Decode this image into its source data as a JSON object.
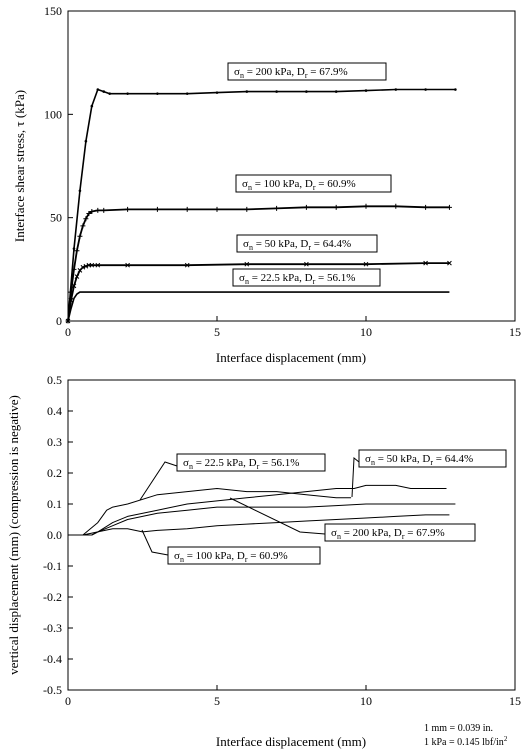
{
  "chart_data": [
    {
      "type": "line",
      "xlabel": "Interface displacement (mm)",
      "ylabel": "Interface shear stress, τ (kPa)",
      "xlim": [
        0,
        15
      ],
      "ylim": [
        0,
        150
      ],
      "xticks": [
        "0",
        "5",
        "10",
        "15"
      ],
      "yticks": [
        "0",
        "50",
        "100",
        "150"
      ],
      "grid": false,
      "series": [
        {
          "name": "σn = 200 kPa, Dr = 67.9%",
          "marker": "dot",
          "x": [
            0,
            0.2,
            0.4,
            0.6,
            0.8,
            1.0,
            1.2,
            1.4,
            2,
            3,
            4,
            5,
            6,
            7,
            8,
            9,
            10,
            11,
            12,
            13
          ],
          "y": [
            0,
            35,
            63,
            87,
            104,
            112,
            111,
            110,
            110,
            110,
            110,
            110.5,
            111,
            111,
            111,
            111,
            111.5,
            112,
            112,
            112
          ]
        },
        {
          "name": "σn = 100 kPa, Dr = 60.9%",
          "marker": "plus",
          "x": [
            0,
            0.1,
            0.2,
            0.3,
            0.4,
            0.5,
            0.6,
            0.7,
            0.8,
            1.0,
            1.2,
            2,
            3,
            4,
            5,
            6,
            7,
            8,
            9,
            10,
            11,
            12,
            12.8
          ],
          "y": [
            0,
            14,
            25,
            34,
            41,
            46,
            49.5,
            52,
            53,
            53.5,
            53.5,
            54,
            54,
            54,
            54,
            54,
            54.5,
            55,
            55,
            55.5,
            55.5,
            55,
            55
          ]
        },
        {
          "name": "σn = 50 kPa, Dr = 64.4%",
          "marker": "cross",
          "x": [
            0,
            0.1,
            0.2,
            0.3,
            0.4,
            0.5,
            0.6,
            0.7,
            0.8,
            1.0,
            2,
            4,
            6,
            8,
            10,
            12,
            12.8
          ],
          "y": [
            0,
            10,
            17,
            21.5,
            24.5,
            26,
            26.5,
            27,
            27,
            27,
            27,
            27,
            27.5,
            27.5,
            27.5,
            28,
            28
          ]
        },
        {
          "name": "σn = 22.5 kPa, Dr = 56.1%",
          "marker": "none",
          "x": [
            0,
            0.1,
            0.2,
            0.3,
            0.4,
            0.6,
            1,
            2,
            4,
            6,
            8,
            10,
            12,
            12.8
          ],
          "y": [
            0,
            6,
            11,
            13,
            14,
            14,
            14,
            14,
            14,
            14,
            14,
            14,
            14,
            14
          ]
        }
      ]
    },
    {
      "type": "line",
      "xlabel": "Interface displacement (mm)",
      "ylabel": "vertical displacement (mm) (compression is negative)",
      "xlim": [
        0,
        15
      ],
      "ylim": [
        -0.5,
        0.5
      ],
      "xticks": [
        "0",
        "5",
        "10",
        "15"
      ],
      "yticks": [
        "0.5",
        "0.4",
        "0.3",
        "0.2",
        "0.1",
        "0.0",
        "-0.1",
        "-0.2",
        "-0.3",
        "-0.4",
        "-0.5"
      ],
      "grid": false,
      "series": [
        {
          "name": "σn = 22.5 kPa, Dr = 56.1%",
          "x": [
            0,
            0.5,
            1,
            1.3,
            1.5,
            2,
            3,
            4,
            5,
            6,
            7,
            8,
            9,
            9.5
          ],
          "y": [
            0,
            0,
            0.04,
            0.08,
            0.09,
            0.1,
            0.13,
            0.14,
            0.15,
            0.14,
            0.14,
            0.13,
            0.12,
            0.12
          ]
        },
        {
          "name": "σn = 50 kPa, Dr = 64.4%",
          "x": [
            0,
            0.8,
            1,
            1.5,
            2,
            3,
            4,
            5,
            6,
            7,
            8,
            9,
            9.6,
            10,
            11,
            11.5,
            12,
            12.5,
            12.7
          ],
          "y": [
            0,
            0,
            0.01,
            0.04,
            0.06,
            0.08,
            0.1,
            0.11,
            0.12,
            0.13,
            0.14,
            0.15,
            0.15,
            0.16,
            0.16,
            0.15,
            0.15,
            0.15,
            0.15
          ]
        },
        {
          "name": "σn = 100 kPa, Dr = 60.9%",
          "x": [
            0,
            0.5,
            1,
            1.5,
            2,
            2.5,
            3,
            4,
            5,
            6,
            7,
            8,
            9,
            10,
            11,
            12,
            12.8
          ],
          "y": [
            0,
            0,
            0.01,
            0.02,
            0.02,
            0.01,
            0.015,
            0.02,
            0.03,
            0.035,
            0.04,
            0.045,
            0.05,
            0.055,
            0.06,
            0.065,
            0.065
          ]
        },
        {
          "name": "σn = 200 kPa, Dr = 67.9%",
          "x": [
            0,
            0.8,
            1,
            1.5,
            2,
            3,
            4,
            5,
            6,
            7,
            8,
            9,
            10,
            11,
            12,
            13
          ],
          "y": [
            0,
            0,
            0.01,
            0.03,
            0.05,
            0.07,
            0.08,
            0.09,
            0.09,
            0.09,
            0.09,
            0.095,
            0.1,
            0.1,
            0.1,
            0.1
          ]
        }
      ]
    }
  ],
  "annotations_top": [
    {
      "sigma": "σ",
      "sub_n": "n",
      "text_mid": " = 200 kPa, D",
      "sub_r": "r",
      "text_end": " = 67.9%"
    },
    {
      "sigma": "σ",
      "sub_n": "n",
      "text_mid": " = 100 kPa, D",
      "sub_r": "r",
      "text_end": " = 60.9%"
    },
    {
      "sigma": "σ",
      "sub_n": "n",
      "text_mid": " = 50 kPa, D",
      "sub_r": "r",
      "text_end": " = 64.4%"
    },
    {
      "sigma": "σ",
      "sub_n": "n",
      "text_mid": " = 22.5 kPa, D",
      "sub_r": "r",
      "text_end": " = 56.1%"
    }
  ],
  "annotations_bottom": [
    {
      "sigma": "σ",
      "sub_n": "n",
      "text_mid": " = 22.5 kPa, D",
      "sub_r": "r",
      "text_end": " = 56.1%"
    },
    {
      "sigma": "σ",
      "sub_n": "n",
      "text_mid": " = 50 kPa, D",
      "sub_r": "r",
      "text_end": " = 64.4%"
    },
    {
      "sigma": "σ",
      "sub_n": "n",
      "text_mid": " = 200 kPa, D",
      "sub_r": "r",
      "text_end": " = 67.9%"
    },
    {
      "sigma": "σ",
      "sub_n": "n",
      "text_mid": " = 100 kPa, D",
      "sub_r": "r",
      "text_end": " = 60.9%"
    }
  ],
  "conversion_notes": [
    "1 mm = 0.039 in.",
    "1 kPa = 0.145 lbf/in",
    "2"
  ]
}
